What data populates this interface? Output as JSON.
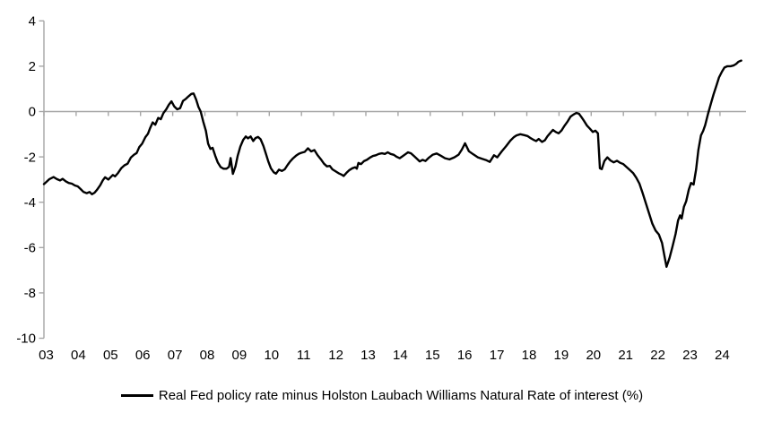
{
  "legend": {
    "label": "Real Fed policy rate minus Holston Laubach Williams Natural Rate of interest (%)"
  },
  "chart_data": {
    "type": "line",
    "title": "",
    "xlabel": "",
    "ylabel": "",
    "grid": false,
    "zero_line": true,
    "legend_position": "bottom-center",
    "axis_color": "#a6a6a6",
    "text_color": "#000000",
    "background_color": "#ffffff",
    "line_color": "#000000",
    "ylim": [
      -10,
      4
    ],
    "xlim": [
      2003,
      2024.81
    ],
    "y_ticks": [
      4,
      2,
      0,
      -2,
      -4,
      -6,
      -8,
      -10
    ],
    "x_tick_labels": [
      "03",
      "04",
      "05",
      "06",
      "07",
      "08",
      "09",
      "10",
      "11",
      "12",
      "13",
      "14",
      "15",
      "16",
      "17",
      "18",
      "19",
      "20",
      "21",
      "22",
      "23",
      "24"
    ],
    "series": [
      {
        "name": "Real Fed policy rate minus Holston Laubach Williams Natural Rate of interest (%)",
        "color": "#000000",
        "points": [
          [
            2003.0,
            -3.2
          ],
          [
            2003.08,
            -3.1
          ],
          [
            2003.17,
            -2.98
          ],
          [
            2003.3,
            -2.89
          ],
          [
            2003.4,
            -2.98
          ],
          [
            2003.5,
            -3.04
          ],
          [
            2003.58,
            -2.97
          ],
          [
            2003.68,
            -3.08
          ],
          [
            2003.77,
            -3.15
          ],
          [
            2003.87,
            -3.18
          ],
          [
            2003.96,
            -3.26
          ],
          [
            2004.05,
            -3.3
          ],
          [
            2004.14,
            -3.42
          ],
          [
            2004.23,
            -3.55
          ],
          [
            2004.33,
            -3.6
          ],
          [
            2004.42,
            -3.55
          ],
          [
            2004.49,
            -3.65
          ],
          [
            2004.57,
            -3.58
          ],
          [
            2004.65,
            -3.45
          ],
          [
            2004.75,
            -3.25
          ],
          [
            2004.83,
            -3.03
          ],
          [
            2004.9,
            -2.9
          ],
          [
            2005.0,
            -3.0
          ],
          [
            2005.08,
            -2.88
          ],
          [
            2005.14,
            -2.8
          ],
          [
            2005.21,
            -2.86
          ],
          [
            2005.3,
            -2.71
          ],
          [
            2005.4,
            -2.5
          ],
          [
            2005.5,
            -2.37
          ],
          [
            2005.6,
            -2.3
          ],
          [
            2005.7,
            -2.03
          ],
          [
            2005.8,
            -1.9
          ],
          [
            2005.88,
            -1.83
          ],
          [
            2005.96,
            -1.57
          ],
          [
            2006.05,
            -1.42
          ],
          [
            2006.15,
            -1.13
          ],
          [
            2006.23,
            -0.98
          ],
          [
            2006.3,
            -0.72
          ],
          [
            2006.38,
            -0.48
          ],
          [
            2006.46,
            -0.58
          ],
          [
            2006.55,
            -0.28
          ],
          [
            2006.63,
            -0.34
          ],
          [
            2006.71,
            -0.07
          ],
          [
            2006.8,
            0.1
          ],
          [
            2006.88,
            0.3
          ],
          [
            2006.96,
            0.45
          ],
          [
            2007.05,
            0.22
          ],
          [
            2007.14,
            0.1
          ],
          [
            2007.23,
            0.15
          ],
          [
            2007.32,
            0.47
          ],
          [
            2007.41,
            0.56
          ],
          [
            2007.5,
            0.68
          ],
          [
            2007.58,
            0.78
          ],
          [
            2007.65,
            0.8
          ],
          [
            2007.73,
            0.52
          ],
          [
            2007.8,
            0.2
          ],
          [
            2007.87,
            0.0
          ],
          [
            2007.95,
            -0.45
          ],
          [
            2008.03,
            -0.85
          ],
          [
            2008.1,
            -1.42
          ],
          [
            2008.17,
            -1.65
          ],
          [
            2008.24,
            -1.6
          ],
          [
            2008.32,
            -1.95
          ],
          [
            2008.4,
            -2.25
          ],
          [
            2008.49,
            -2.45
          ],
          [
            2008.58,
            -2.52
          ],
          [
            2008.67,
            -2.52
          ],
          [
            2008.75,
            -2.44
          ],
          [
            2008.8,
            -2.05
          ],
          [
            2008.87,
            -2.75
          ],
          [
            2008.95,
            -2.42
          ],
          [
            2009.02,
            -1.95
          ],
          [
            2009.1,
            -1.55
          ],
          [
            2009.19,
            -1.25
          ],
          [
            2009.27,
            -1.1
          ],
          [
            2009.34,
            -1.18
          ],
          [
            2009.42,
            -1.1
          ],
          [
            2009.5,
            -1.3
          ],
          [
            2009.57,
            -1.17
          ],
          [
            2009.65,
            -1.12
          ],
          [
            2009.73,
            -1.22
          ],
          [
            2009.82,
            -1.52
          ],
          [
            2009.9,
            -1.88
          ],
          [
            2009.97,
            -2.2
          ],
          [
            2010.05,
            -2.5
          ],
          [
            2010.14,
            -2.68
          ],
          [
            2010.21,
            -2.74
          ],
          [
            2010.3,
            -2.56
          ],
          [
            2010.39,
            -2.62
          ],
          [
            2010.48,
            -2.55
          ],
          [
            2010.57,
            -2.35
          ],
          [
            2010.65,
            -2.2
          ],
          [
            2010.74,
            -2.06
          ],
          [
            2010.83,
            -1.95
          ],
          [
            2010.92,
            -1.86
          ],
          [
            2011.0,
            -1.82
          ],
          [
            2011.1,
            -1.78
          ],
          [
            2011.2,
            -1.62
          ],
          [
            2011.3,
            -1.76
          ],
          [
            2011.4,
            -1.7
          ],
          [
            2011.5,
            -1.92
          ],
          [
            2011.6,
            -2.1
          ],
          [
            2011.7,
            -2.3
          ],
          [
            2011.79,
            -2.42
          ],
          [
            2011.88,
            -2.4
          ],
          [
            2011.96,
            -2.55
          ],
          [
            2012.05,
            -2.63
          ],
          [
            2012.15,
            -2.72
          ],
          [
            2012.24,
            -2.78
          ],
          [
            2012.31,
            -2.84
          ],
          [
            2012.4,
            -2.7
          ],
          [
            2012.49,
            -2.58
          ],
          [
            2012.58,
            -2.5
          ],
          [
            2012.67,
            -2.46
          ],
          [
            2012.72,
            -2.52
          ],
          [
            2012.77,
            -2.27
          ],
          [
            2012.85,
            -2.32
          ],
          [
            2012.94,
            -2.19
          ],
          [
            2013.03,
            -2.13
          ],
          [
            2013.12,
            -2.04
          ],
          [
            2013.22,
            -1.96
          ],
          [
            2013.31,
            -1.93
          ],
          [
            2013.4,
            -1.87
          ],
          [
            2013.5,
            -1.84
          ],
          [
            2013.59,
            -1.87
          ],
          [
            2013.68,
            -1.8
          ],
          [
            2013.77,
            -1.87
          ],
          [
            2013.87,
            -1.91
          ],
          [
            2013.96,
            -2.0
          ],
          [
            2014.05,
            -2.06
          ],
          [
            2014.15,
            -1.96
          ],
          [
            2014.24,
            -1.87
          ],
          [
            2014.31,
            -1.8
          ],
          [
            2014.4,
            -1.84
          ],
          [
            2014.5,
            -1.97
          ],
          [
            2014.6,
            -2.1
          ],
          [
            2014.67,
            -2.2
          ],
          [
            2014.76,
            -2.13
          ],
          [
            2014.85,
            -2.18
          ],
          [
            2014.96,
            -2.03
          ],
          [
            2015.08,
            -1.9
          ],
          [
            2015.2,
            -1.85
          ],
          [
            2015.33,
            -1.95
          ],
          [
            2015.46,
            -2.06
          ],
          [
            2015.6,
            -2.11
          ],
          [
            2015.75,
            -2.02
          ],
          [
            2015.88,
            -1.9
          ],
          [
            2015.98,
            -1.68
          ],
          [
            2016.08,
            -1.4
          ],
          [
            2016.2,
            -1.75
          ],
          [
            2016.34,
            -1.89
          ],
          [
            2016.48,
            -2.02
          ],
          [
            2016.62,
            -2.09
          ],
          [
            2016.75,
            -2.15
          ],
          [
            2016.85,
            -2.22
          ],
          [
            2016.98,
            -1.93
          ],
          [
            2017.08,
            -2.02
          ],
          [
            2017.22,
            -1.76
          ],
          [
            2017.36,
            -1.52
          ],
          [
            2017.49,
            -1.28
          ],
          [
            2017.59,
            -1.14
          ],
          [
            2017.68,
            -1.05
          ],
          [
            2017.8,
            -1.0
          ],
          [
            2017.92,
            -1.04
          ],
          [
            2018.02,
            -1.08
          ],
          [
            2018.1,
            -1.16
          ],
          [
            2018.2,
            -1.24
          ],
          [
            2018.29,
            -1.3
          ],
          [
            2018.37,
            -1.21
          ],
          [
            2018.47,
            -1.34
          ],
          [
            2018.56,
            -1.27
          ],
          [
            2018.64,
            -1.09
          ],
          [
            2018.72,
            -0.96
          ],
          [
            2018.81,
            -0.81
          ],
          [
            2018.9,
            -0.9
          ],
          [
            2018.99,
            -0.96
          ],
          [
            2019.08,
            -0.83
          ],
          [
            2019.17,
            -0.63
          ],
          [
            2019.27,
            -0.43
          ],
          [
            2019.36,
            -0.22
          ],
          [
            2019.45,
            -0.13
          ],
          [
            2019.54,
            -0.06
          ],
          [
            2019.62,
            -0.1
          ],
          [
            2019.7,
            -0.25
          ],
          [
            2019.78,
            -0.42
          ],
          [
            2019.87,
            -0.62
          ],
          [
            2019.96,
            -0.76
          ],
          [
            2020.05,
            -0.9
          ],
          [
            2020.13,
            -0.84
          ],
          [
            2020.21,
            -0.96
          ],
          [
            2020.27,
            -2.5
          ],
          [
            2020.33,
            -2.54
          ],
          [
            2020.41,
            -2.18
          ],
          [
            2020.5,
            -2.02
          ],
          [
            2020.6,
            -2.16
          ],
          [
            2020.7,
            -2.24
          ],
          [
            2020.8,
            -2.17
          ],
          [
            2020.9,
            -2.26
          ],
          [
            2021.0,
            -2.32
          ],
          [
            2021.1,
            -2.45
          ],
          [
            2021.2,
            -2.58
          ],
          [
            2021.3,
            -2.71
          ],
          [
            2021.4,
            -2.92
          ],
          [
            2021.5,
            -3.18
          ],
          [
            2021.6,
            -3.6
          ],
          [
            2021.7,
            -4.05
          ],
          [
            2021.8,
            -4.5
          ],
          [
            2021.9,
            -4.95
          ],
          [
            2022.0,
            -5.25
          ],
          [
            2022.1,
            -5.42
          ],
          [
            2022.2,
            -5.8
          ],
          [
            2022.28,
            -6.42
          ],
          [
            2022.34,
            -6.85
          ],
          [
            2022.43,
            -6.48
          ],
          [
            2022.52,
            -5.98
          ],
          [
            2022.62,
            -5.4
          ],
          [
            2022.7,
            -4.8
          ],
          [
            2022.76,
            -4.58
          ],
          [
            2022.81,
            -4.72
          ],
          [
            2022.88,
            -4.2
          ],
          [
            2022.95,
            -3.96
          ],
          [
            2023.03,
            -3.45
          ],
          [
            2023.1,
            -3.15
          ],
          [
            2023.18,
            -3.22
          ],
          [
            2023.26,
            -2.55
          ],
          [
            2023.33,
            -1.7
          ],
          [
            2023.41,
            -1.05
          ],
          [
            2023.48,
            -0.85
          ],
          [
            2023.54,
            -0.6
          ],
          [
            2023.63,
            -0.1
          ],
          [
            2023.72,
            0.35
          ],
          [
            2023.8,
            0.75
          ],
          [
            2023.89,
            1.15
          ],
          [
            2023.97,
            1.5
          ],
          [
            2024.06,
            1.76
          ],
          [
            2024.14,
            1.94
          ],
          [
            2024.23,
            2.0
          ],
          [
            2024.33,
            2.0
          ],
          [
            2024.42,
            2.03
          ],
          [
            2024.5,
            2.1
          ],
          [
            2024.58,
            2.2
          ],
          [
            2024.66,
            2.25
          ]
        ]
      }
    ]
  }
}
